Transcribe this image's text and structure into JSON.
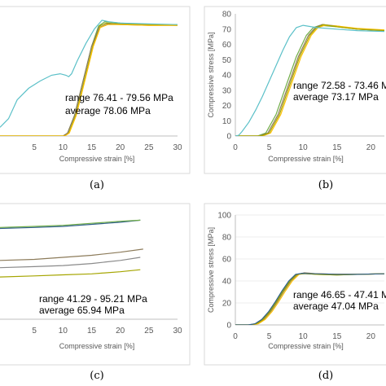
{
  "chart_data": [
    {
      "type": "line",
      "caption": "(a)",
      "xlabel": "Compressive strain [%]",
      "ylabel": "",
      "xlim": [
        -1,
        30
      ],
      "ylim": [
        0,
        85
      ],
      "xticks": [
        5,
        10,
        15,
        20,
        25,
        30
      ],
      "yticks": [],
      "grid": false,
      "annotations": [
        "range 76.41 - 79.56 MPa",
        "average 78.06 MPa"
      ],
      "series": [
        {
          "color": "#70ad47",
          "x": [
            -1,
            10,
            10.8,
            12,
            13.5,
            15,
            16.2,
            17.3,
            20,
            25,
            30
          ],
          "y": [
            0,
            0,
            2,
            14,
            38,
            62,
            76,
            79,
            78,
            77,
            77
          ]
        },
        {
          "color": "#a5a500",
          "x": [
            -1,
            10.2,
            11,
            12.2,
            13.7,
            15.2,
            16.4,
            17.5,
            20,
            25,
            30
          ],
          "y": [
            0,
            0,
            2,
            14,
            38,
            62,
            76,
            78,
            77.5,
            77,
            76.5
          ]
        },
        {
          "color": "#8c7b5a",
          "x": [
            -1,
            10,
            10.8,
            12,
            13.5,
            15,
            16.3,
            17.8,
            20,
            25,
            30
          ],
          "y": [
            0,
            0,
            2,
            14,
            38,
            62,
            75,
            77.5,
            77,
            76.5,
            76.5
          ]
        },
        {
          "color": "#ffc000",
          "x": [
            -1,
            10.3,
            11.1,
            12.3,
            13.8,
            15.3,
            16.5,
            17.8,
            20,
            25,
            30
          ],
          "y": [
            0,
            0,
            2,
            14,
            38,
            62,
            75,
            77,
            77,
            76.5,
            76.5
          ]
        },
        {
          "color": "#5bc0c8",
          "x": [
            -1,
            0.5,
            2,
            4,
            6,
            8,
            9.5,
            10.5,
            11,
            11.5,
            12.5,
            14,
            15.5,
            16.8,
            18,
            20,
            25,
            30
          ],
          "y": [
            6,
            12,
            25,
            33,
            38,
            42,
            43,
            42,
            41,
            43,
            52,
            64,
            74,
            80,
            79,
            78,
            77.5,
            77
          ]
        }
      ]
    },
    {
      "type": "line",
      "caption": "(b)",
      "xlabel": "Compressive strain [%]",
      "ylabel": "Compressive stress [MPa]",
      "xlim": [
        0,
        22
      ],
      "ylim": [
        0,
        80
      ],
      "xticks": [
        0,
        5,
        10,
        15,
        20
      ],
      "yticks": [
        0,
        10,
        20,
        30,
        40,
        50,
        60,
        70,
        80
      ],
      "grid": false,
      "annotations": [
        "range 72.58 - 73.46 M",
        "average 73.17 MPa"
      ],
      "series": [
        {
          "color": "#70ad47",
          "x": [
            0,
            3.3,
            4.5,
            6,
            7.5,
            9,
            10.5,
            11.5,
            12.5,
            15,
            18,
            22
          ],
          "y": [
            0,
            0,
            2,
            14,
            33,
            52,
            66,
            71,
            72.5,
            71.5,
            70,
            69
          ]
        },
        {
          "color": "#8c7b5a",
          "x": [
            0,
            3.6,
            4.8,
            6.3,
            7.8,
            9.3,
            10.8,
            11.8,
            12.8,
            15,
            18,
            22
          ],
          "y": [
            0,
            0,
            2,
            14,
            33,
            52,
            66,
            71,
            73,
            72,
            70,
            69
          ]
        },
        {
          "color": "#ffc000",
          "x": [
            0,
            4,
            5.2,
            6.7,
            8.2,
            9.7,
            11.2,
            12.2,
            13.2,
            15,
            18,
            22
          ],
          "y": [
            0,
            0,
            2,
            14,
            33,
            52,
            66,
            71,
            72.5,
            72,
            70.5,
            69.5
          ]
        },
        {
          "color": "#a5a500",
          "x": [
            0,
            3.8,
            5,
            6.5,
            8,
            9.5,
            11,
            12,
            13,
            15,
            18,
            22
          ],
          "y": [
            0,
            0,
            2,
            14,
            33,
            52,
            66,
            71,
            73,
            71.5,
            70,
            69
          ]
        },
        {
          "color": "#5bc0c8",
          "x": [
            0,
            0.5,
            1,
            2,
            3,
            4,
            5,
            6,
            7,
            8,
            9,
            10,
            12,
            15,
            18,
            22
          ],
          "y": [
            0,
            0.5,
            3,
            9,
            17,
            26,
            36,
            46,
            56,
            65,
            71,
            72.5,
            71,
            70,
            69,
            68.5
          ]
        }
      ]
    },
    {
      "type": "line",
      "caption": "(c)",
      "xlabel": "Compressive strain [%]",
      "ylabel": "",
      "xlim": [
        -1,
        30
      ],
      "ylim": [
        0,
        120
      ],
      "xticks": [
        5,
        10,
        15,
        20,
        25,
        30
      ],
      "yticks": [],
      "grid": false,
      "annotations": [
        "range 41.29 - 95.21 MPa",
        "average 65.94 MPa"
      ],
      "series": [
        {
          "color": "#2f5f8a",
          "x": [
            -1,
            5,
            10,
            15,
            20,
            23.5
          ],
          "y": [
            88,
            89,
            90,
            92,
            94,
            96
          ]
        },
        {
          "color": "#70ad47",
          "x": [
            -1,
            5,
            10,
            15,
            20,
            23.5
          ],
          "y": [
            89,
            90,
            91,
            93,
            95,
            96
          ]
        },
        {
          "color": "#8c7b5a",
          "x": [
            -1,
            5,
            10,
            15,
            20,
            24
          ],
          "y": [
            57,
            58,
            60,
            62,
            65,
            68
          ]
        },
        {
          "color": "#8a8a8a",
          "x": [
            -1,
            5,
            10,
            15,
            20,
            23.5
          ],
          "y": [
            50,
            51,
            52,
            54,
            57,
            60
          ]
        },
        {
          "color": "#a5a500",
          "x": [
            -1,
            5,
            10,
            15,
            20,
            23.5
          ],
          "y": [
            41,
            42,
            43,
            44,
            46,
            48
          ]
        }
      ]
    },
    {
      "type": "line",
      "caption": "(d)",
      "xlabel": "Compressive strain [%]",
      "ylabel": "Compressive stress [MPa]",
      "xlim": [
        0,
        22
      ],
      "ylim": [
        0,
        100
      ],
      "xticks": [
        0,
        5,
        10,
        15,
        20
      ],
      "yticks": [
        0,
        20,
        40,
        60,
        80,
        100
      ],
      "grid": true,
      "annotations": [
        "range 46.65 - 47.41 M",
        "average 47.04 MPa"
      ],
      "series": [
        {
          "color": "#70ad47",
          "x": [
            0,
            2,
            3,
            4,
            5,
            6,
            7,
            8,
            9,
            10,
            12,
            15,
            18,
            22
          ],
          "y": [
            0,
            0,
            1,
            5,
            12,
            21,
            31,
            40,
            46,
            47,
            46,
            45.5,
            46,
            46.5
          ]
        },
        {
          "color": "#8c7b5a",
          "x": [
            0,
            2.2,
            3.2,
            4.2,
            5.2,
            6.2,
            7.2,
            8.2,
            9.2,
            10.2,
            12,
            15,
            18,
            22
          ],
          "y": [
            0,
            0,
            1,
            5,
            12,
            21,
            31,
            40,
            46,
            47.4,
            46.5,
            46,
            46,
            46.5
          ]
        },
        {
          "color": "#ffc000",
          "x": [
            0,
            2.4,
            3.4,
            4.4,
            5.4,
            6.4,
            7.4,
            8.4,
            9.4,
            10.4,
            12,
            15,
            18,
            22
          ],
          "y": [
            0,
            0,
            1,
            5,
            12,
            21,
            31,
            40,
            46,
            47,
            46.5,
            46,
            46,
            46.5
          ]
        },
        {
          "color": "#a5a500",
          "x": [
            0,
            2.1,
            3.1,
            4.1,
            5.1,
            6.1,
            7.1,
            8.1,
            9.1,
            10.1,
            12,
            15,
            18,
            22
          ],
          "y": [
            0,
            0,
            1,
            5,
            12,
            21,
            31,
            40,
            46,
            46.7,
            46,
            45.5,
            46,
            46.5
          ]
        },
        {
          "color": "#2f5f8a",
          "x": [
            0,
            1.9,
            2.9,
            3.9,
            4.9,
            5.9,
            6.9,
            7.9,
            8.9,
            9.9,
            12,
            15,
            18,
            22
          ],
          "y": [
            0,
            0,
            1,
            5,
            12,
            21,
            31,
            40,
            46,
            47,
            46.5,
            46,
            46,
            46.5
          ]
        }
      ]
    }
  ]
}
